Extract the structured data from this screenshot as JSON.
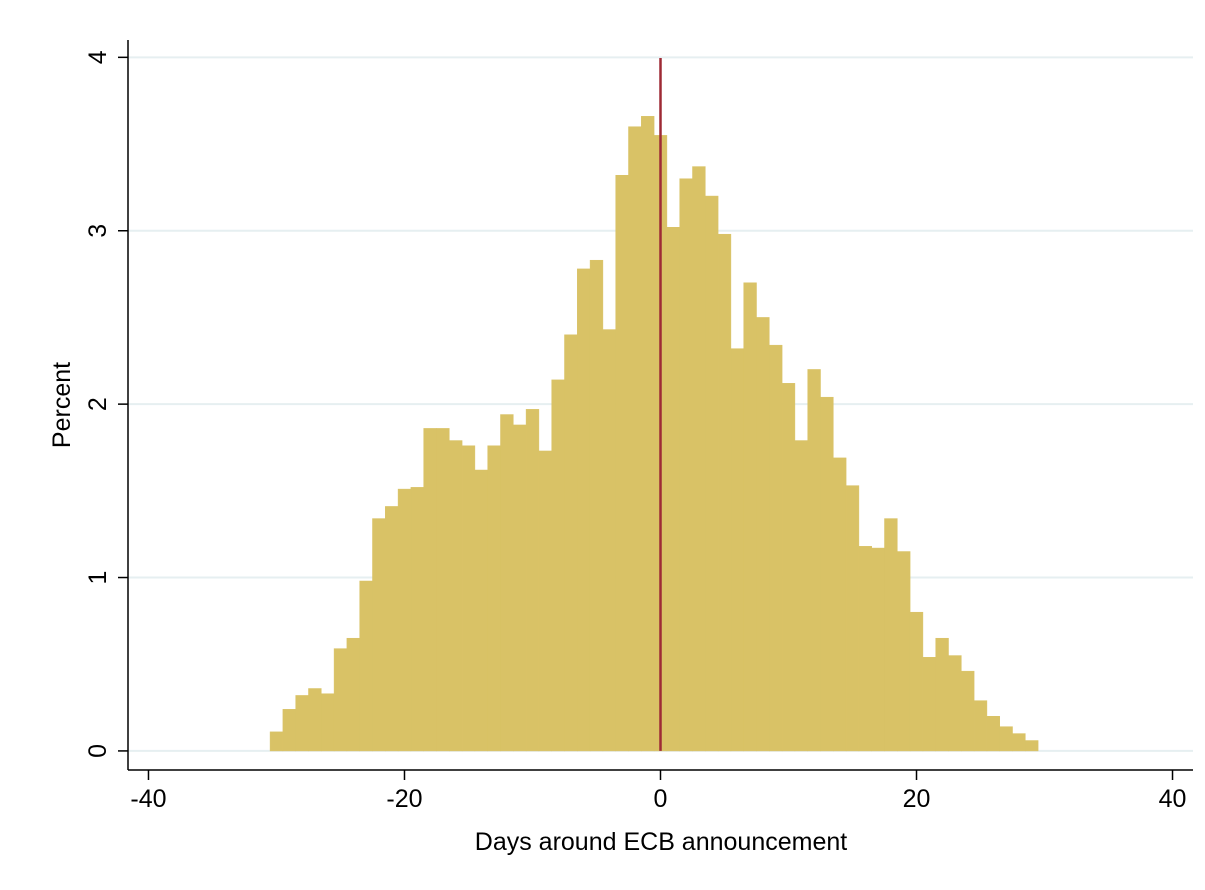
{
  "chart_data": {
    "type": "histogram",
    "x_label": "Days around ECB announcement",
    "y_label": "Percent",
    "bins": [
      -30.5,
      -29.5,
      -28.5,
      -27.5,
      -26.5,
      -25.5,
      -24.5,
      -23.5,
      -22.5,
      -21.5,
      -20.5,
      -19.5,
      -18.5,
      -17.5,
      -16.5,
      -15.5,
      -14.5,
      -13.5,
      -12.5,
      -11.5,
      -10.5,
      -9.5,
      -8.5,
      -7.5,
      -6.5,
      -5.5,
      -4.5,
      -3.5,
      -2.5,
      -1.5,
      -0.5,
      0.5,
      1.5,
      2.5,
      3.5,
      4.5,
      5.5,
      6.5,
      7.5,
      8.5,
      9.5,
      10.5,
      11.5,
      12.5,
      13.5,
      14.5,
      15.5,
      16.5,
      17.5,
      18.5,
      19.5,
      20.5,
      21.5,
      22.5,
      23.5,
      24.5,
      25.5,
      26.5,
      27.5,
      28.5,
      29.5
    ],
    "values": [
      0.11,
      0.24,
      0.32,
      0.36,
      0.33,
      0.59,
      0.65,
      0.98,
      1.34,
      1.41,
      1.51,
      1.52,
      1.86,
      1.86,
      1.79,
      1.76,
      1.62,
      1.76,
      1.94,
      1.88,
      1.97,
      1.73,
      2.14,
      2.4,
      2.78,
      2.83,
      2.43,
      3.32,
      3.6,
      3.66,
      3.55,
      3.02,
      3.3,
      3.37,
      3.2,
      2.98,
      2.32,
      2.7,
      2.5,
      2.34,
      2.12,
      1.79,
      2.2,
      2.04,
      1.69,
      1.53,
      1.18,
      1.17,
      1.34,
      1.15,
      0.8,
      0.54,
      0.65,
      0.55,
      0.46,
      0.29,
      0.2,
      0.14,
      0.1,
      0.06
    ],
    "color": "#d9c266",
    "vline": 0,
    "vline_color": "#9e2a35",
    "xlim": [
      -41.6,
      41.6
    ],
    "xticks": [
      -40,
      -20,
      0,
      20,
      40
    ],
    "ylim": [
      -0.11,
      4.1
    ],
    "yticks": [
      0,
      1,
      2,
      3,
      4
    ],
    "grid": true
  }
}
